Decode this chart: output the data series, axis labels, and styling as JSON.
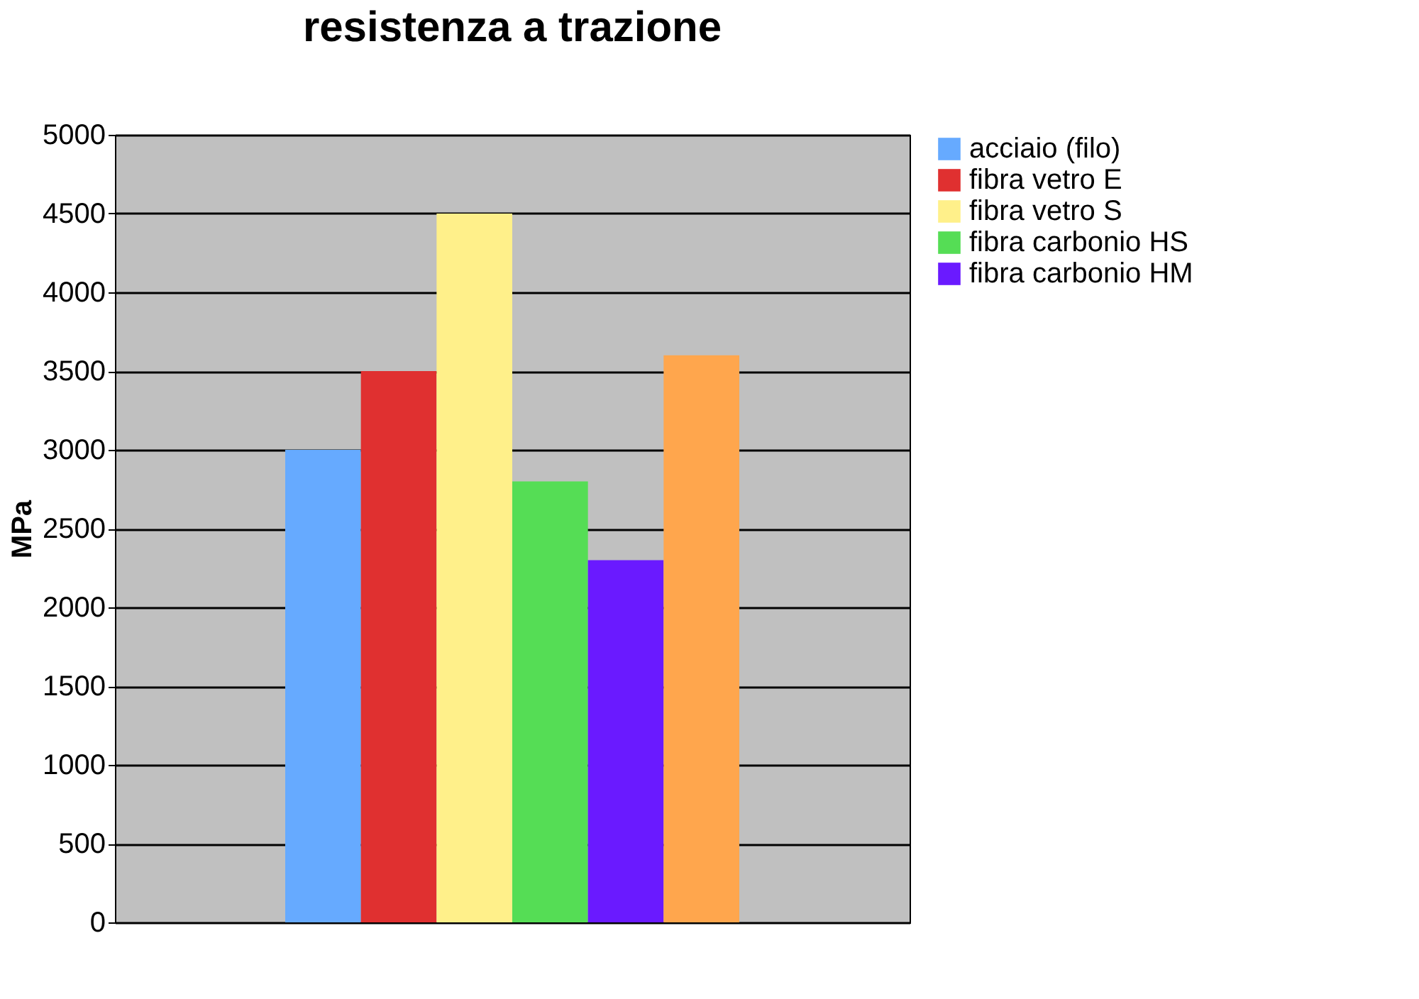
{
  "chart_data": {
    "type": "bar",
    "title": "resistenza a trazione",
    "ylabel": "MPa",
    "categories": [
      null
    ],
    "series": [
      {
        "name": "acciaio (filo)",
        "color": "#66aaff",
        "values": [
          3000
        ]
      },
      {
        "name": "fibra vetro E",
        "color": "#e03030",
        "values": [
          3500
        ]
      },
      {
        "name": "fibra vetro S",
        "color": "#fff08a",
        "values": [
          4500
        ]
      },
      {
        "name": "fibra carbonio HS",
        "color": "#55dd55",
        "values": [
          2800
        ]
      },
      {
        "name": "fibra carbonio HM",
        "color": "#6a1aff",
        "values": [
          2300
        ]
      },
      {
        "color": "#ffa64d",
        "values": [
          3600
        ]
      }
    ],
    "ylim": [
      0,
      5000
    ],
    "yticks": [
      0,
      500,
      1000,
      1500,
      2000,
      2500,
      3000,
      3500,
      4000,
      4500,
      5000
    ],
    "grid": "y",
    "legend": "right"
  }
}
